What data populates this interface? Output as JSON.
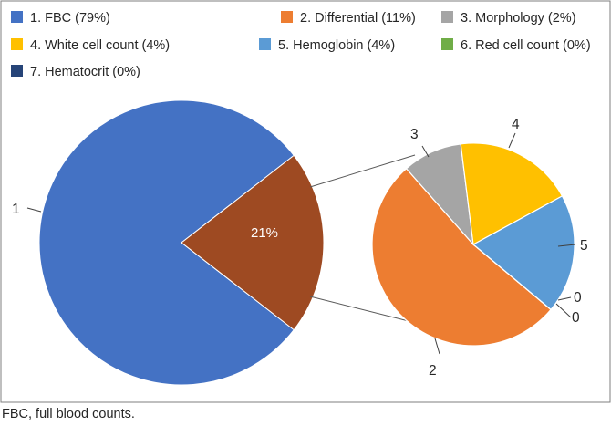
{
  "caption": "FBC, full blood counts.",
  "chart_data": {
    "type": "pie",
    "subtype": "pie-of-pie",
    "title": "",
    "legend_position": "top",
    "slices": [
      {
        "label": "1. FBC (79%)",
        "value": 79,
        "callout": "1",
        "color": "#4472C4"
      },
      {
        "label": "2. Differential (11%)",
        "value": 11,
        "callout": "2",
        "color": "#ED7D31"
      },
      {
        "label": "3. Morphology (2%)",
        "value": 2,
        "callout": "3",
        "color": "#A5A5A5"
      },
      {
        "label": "4. White cell count (4%)",
        "value": 4,
        "callout": "4",
        "color": "#FFC000"
      },
      {
        "label": "5. Hemoglobin (4%)",
        "value": 4,
        "callout": "5",
        "color": "#5B9BD5"
      },
      {
        "label": "6. Red cell count (0%)",
        "value": 0,
        "callout": "0",
        "color": "#70AD47"
      },
      {
        "label": "7. Hematocrit (0%)",
        "value": 0,
        "callout": "0",
        "color": "#264478"
      }
    ],
    "other_slice": {
      "label": "21%",
      "value": 21,
      "color": "#9E4A22"
    }
  }
}
